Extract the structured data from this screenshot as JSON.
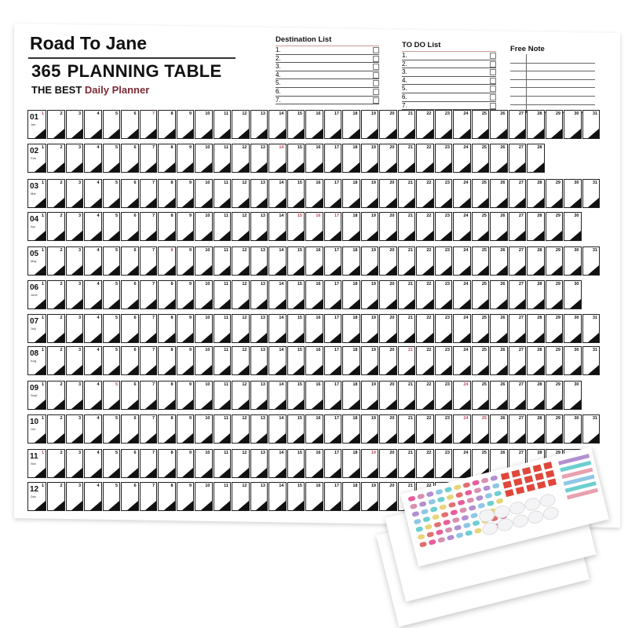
{
  "header": {
    "brand": "Road To Jane",
    "title_number": "365",
    "title_text": "PLANNING TABLE",
    "tagline_main": "THE BEST",
    "tagline_accent": "Daily Planner"
  },
  "destination_list": {
    "title": "Destination List",
    "items": [
      "1.",
      "2.",
      "3.",
      "4.",
      "5.",
      "6.",
      "7."
    ]
  },
  "todo_list": {
    "title": "TO DO List",
    "items": [
      "1.",
      "2.",
      "3.",
      "4.",
      "5.",
      "6.",
      "7."
    ]
  },
  "free_note": {
    "title": "Free Note"
  },
  "colors": {
    "accent": "#7b2a35",
    "holiday": "#b5485a",
    "ink": "#111111"
  },
  "months": [
    {
      "code": "01",
      "abbr": "Jan",
      "days": 31,
      "red": [
        1,
        7
      ]
    },
    {
      "code": "02",
      "abbr": "Feb",
      "days": 28,
      "red": [
        14
      ]
    },
    {
      "code": "03",
      "abbr": "Mar",
      "days": 31,
      "red": []
    },
    {
      "code": "04",
      "abbr": "Apr",
      "days": 30,
      "red": [
        15,
        16,
        17
      ]
    },
    {
      "code": "05",
      "abbr": "May",
      "days": 31,
      "red": [
        8
      ]
    },
    {
      "code": "06",
      "abbr": "June",
      "days": 30,
      "red": []
    },
    {
      "code": "07",
      "abbr": "July",
      "days": 31,
      "red": []
    },
    {
      "code": "08",
      "abbr": "Aug",
      "days": 31,
      "red": [
        21
      ]
    },
    {
      "code": "09",
      "abbr": "Sept",
      "days": 30,
      "red": [
        5,
        24
      ]
    },
    {
      "code": "10",
      "abbr": "Oct",
      "days": 31,
      "red": [
        24,
        25
      ]
    },
    {
      "code": "11",
      "abbr": "Nov",
      "days": 30,
      "red": [
        1,
        19
      ]
    },
    {
      "code": "12",
      "abbr": "Dec",
      "days": 31,
      "red": []
    }
  ]
}
